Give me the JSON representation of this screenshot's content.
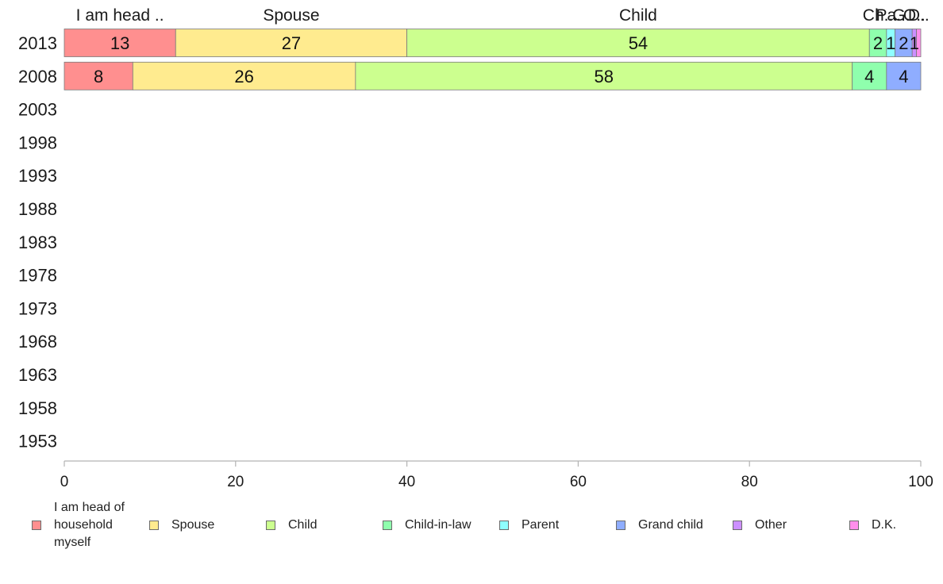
{
  "chart_data": {
    "type": "bar",
    "orientation": "horizontal",
    "stacked": true,
    "categories": [
      "2013",
      "2008",
      "2003",
      "1998",
      "1993",
      "1988",
      "1983",
      "1978",
      "1973",
      "1968",
      "1963",
      "1958",
      "1953"
    ],
    "top_labels": [
      "I am head ..",
      "Spouse",
      "Child",
      "Ch..",
      "Pa..",
      "G..",
      "O..",
      "D.."
    ],
    "series": [
      {
        "name": "I am head of household myself",
        "color": "#ff8f8f",
        "values": [
          13,
          8,
          0,
          0,
          0,
          0,
          0,
          0,
          0,
          0,
          0,
          0,
          0
        ]
      },
      {
        "name": "Spouse",
        "color": "#ffeb8f",
        "values": [
          27,
          26,
          0,
          0,
          0,
          0,
          0,
          0,
          0,
          0,
          0,
          0,
          0
        ]
      },
      {
        "name": "Child",
        "color": "#ccff8f",
        "values": [
          54,
          58,
          0,
          0,
          0,
          0,
          0,
          0,
          0,
          0,
          0,
          0,
          0
        ]
      },
      {
        "name": "Child-in-law",
        "color": "#8fffad",
        "values": [
          2,
          4,
          0,
          0,
          0,
          0,
          0,
          0,
          0,
          0,
          0,
          0,
          0
        ]
      },
      {
        "name": "Parent",
        "color": "#8fffff",
        "values": [
          1,
          0,
          0,
          0,
          0,
          0,
          0,
          0,
          0,
          0,
          0,
          0,
          0
        ]
      },
      {
        "name": "Grand child",
        "color": "#8fadff",
        "values": [
          2,
          4,
          0,
          0,
          0,
          0,
          0,
          0,
          0,
          0,
          0,
          0,
          0
        ]
      },
      {
        "name": "Other",
        "color": "#cc8fff",
        "values": [
          0.5,
          0,
          0,
          0,
          0,
          0,
          0,
          0,
          0,
          0,
          0,
          0,
          0
        ]
      },
      {
        "name": "D.K.",
        "color": "#ff8feb",
        "values": [
          0.5,
          0,
          0,
          0,
          0,
          0,
          0,
          0,
          0,
          0,
          0,
          0,
          0
        ]
      }
    ],
    "data_labels": [
      [
        "13",
        "27",
        "54",
        "2",
        "1",
        "2",
        "1",
        ""
      ],
      [
        "8",
        "26",
        "58",
        "4",
        "",
        "4",
        "",
        ""
      ]
    ],
    "xlim": [
      0,
      100
    ],
    "xticks": [
      0,
      20,
      40,
      60,
      80,
      100
    ],
    "xlabel": "",
    "ylabel": "",
    "title": "",
    "grid": false,
    "legend_position": "bottom",
    "legend_labels": [
      [
        "I am head of",
        "household",
        "myself"
      ],
      [
        "Spouse"
      ],
      [
        "Child"
      ],
      [
        "Child-in-law"
      ],
      [
        "Parent"
      ],
      [
        "Grand child"
      ],
      [
        "Other"
      ],
      [
        "D.K."
      ]
    ]
  }
}
